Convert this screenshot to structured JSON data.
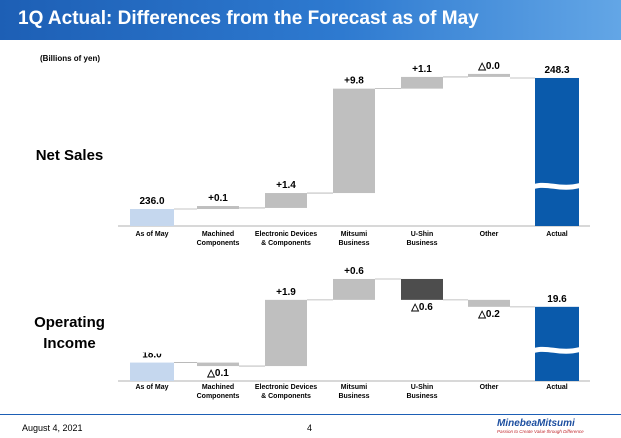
{
  "header": {
    "title": "1Q Actual: Differences from the Forecast as of May"
  },
  "units_label": "(Billions of yen)",
  "footer": {
    "date": "August 4, 2021",
    "page": "4",
    "logo_name": "MinebeaMitsumi",
    "logo_slogan": "Passion to Create Value through Difference"
  },
  "colors": {
    "title_bar": "#1d5fb5",
    "start_bar": "#c5d7ee",
    "actual_bar": "#0a5aab",
    "positive_bar": "#bfbfbf",
    "negative_bar": "#4d4d4d",
    "connector": "#b0b0b0"
  },
  "chart_data": [
    {
      "type": "bar",
      "subtype": "waterfall",
      "row_label_lines": [
        "Net Sales"
      ],
      "axis_break": true,
      "categories": [
        [
          "As of May"
        ],
        [
          "Machined",
          "Components"
        ],
        [
          "Electronic Devices",
          "& Components"
        ],
        [
          "Mitsumi",
          "Business"
        ],
        [
          "U-Shin",
          "Business"
        ],
        [
          "Other"
        ],
        [
          "Actual"
        ]
      ],
      "start": {
        "value": 236.0,
        "label": "236.0"
      },
      "deltas": [
        {
          "value": 0.1,
          "label": "+0.1"
        },
        {
          "value": 1.4,
          "label": "+1.4"
        },
        {
          "value": 9.8,
          "label": "+9.8"
        },
        {
          "value": 1.1,
          "label": "+1.1"
        },
        {
          "value": 0.0,
          "label": "△0.0"
        }
      ],
      "end": {
        "value": 248.3,
        "label": "248.3"
      },
      "ylim": [
        234.5,
        249.8
      ]
    },
    {
      "type": "bar",
      "subtype": "waterfall",
      "row_label_lines": [
        "Operating",
        "Income"
      ],
      "axis_break": true,
      "categories": [
        [
          "As of May"
        ],
        [
          "Machined",
          "Components"
        ],
        [
          "Electronic Devices",
          "& Components"
        ],
        [
          "Mitsumi",
          "Business"
        ],
        [
          "U-Shin",
          "Business"
        ],
        [
          "Other"
        ],
        [
          "Actual"
        ]
      ],
      "start": {
        "value": 18.0,
        "label": "18.0"
      },
      "deltas": [
        {
          "value": -0.1,
          "label": "△0.1"
        },
        {
          "value": 1.9,
          "label": "+1.9"
        },
        {
          "value": 0.6,
          "label": "+0.6"
        },
        {
          "value": -0.6,
          "label": "△0.6"
        },
        {
          "value": -0.2,
          "label": "△0.2"
        }
      ],
      "end": {
        "value": 19.6,
        "label": "19.6"
      },
      "ylim": [
        17.5,
        20.6
      ]
    }
  ]
}
